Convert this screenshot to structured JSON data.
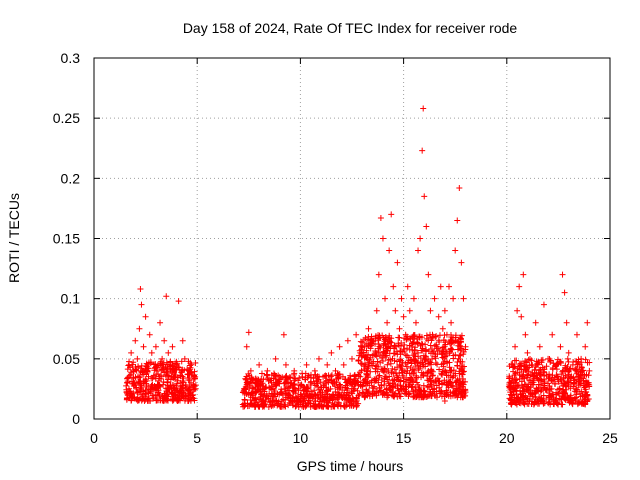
{
  "chart_data": {
    "type": "scatter",
    "title": "Day 158 of 2024, Rate Of TEC Index for receiver rode",
    "xlabel": "GPS time / hours",
    "ylabel": "ROTI / TECUs",
    "xlim": [
      0,
      25
    ],
    "ylim": [
      0,
      0.3
    ],
    "xticks": [
      0,
      5,
      10,
      15,
      20,
      25
    ],
    "xtick_labels": [
      "0",
      "5",
      "10",
      "15",
      "20",
      "25"
    ],
    "yticks": [
      0,
      0.05,
      0.1,
      0.15,
      0.2,
      0.25,
      0.3
    ],
    "ytick_labels": [
      "0",
      "0.05",
      "0.1",
      "0.15",
      "0.2",
      "0.25",
      "0.3"
    ],
    "grid": true,
    "marker": "plus",
    "color": "#ff0000",
    "series": [
      {
        "name": "ROTI",
        "points": [
          [
            1.6,
            0.03
          ],
          [
            1.7,
            0.045
          ],
          [
            1.8,
            0.055
          ],
          [
            1.9,
            0.04
          ],
          [
            2.0,
            0.065
          ],
          [
            2.1,
            0.05
          ],
          [
            2.2,
            0.075
          ],
          [
            2.25,
            0.108
          ],
          [
            2.3,
            0.095
          ],
          [
            2.4,
            0.06
          ],
          [
            2.5,
            0.085
          ],
          [
            2.6,
            0.045
          ],
          [
            2.7,
            0.07
          ],
          [
            2.8,
            0.055
          ],
          [
            2.9,
            0.035
          ],
          [
            3.0,
            0.06
          ],
          [
            3.1,
            0.045
          ],
          [
            3.2,
            0.08
          ],
          [
            3.3,
            0.05
          ],
          [
            3.4,
            0.065
          ],
          [
            3.5,
            0.102
          ],
          [
            3.6,
            0.055
          ],
          [
            3.7,
            0.04
          ],
          [
            3.8,
            0.06
          ],
          [
            3.9,
            0.035
          ],
          [
            4.0,
            0.045
          ],
          [
            4.1,
            0.098
          ],
          [
            4.2,
            0.03
          ],
          [
            4.3,
            0.065
          ],
          [
            4.4,
            0.05
          ],
          [
            4.5,
            0.025
          ],
          [
            4.6,
            0.04
          ],
          [
            4.7,
            0.03
          ],
          [
            4.8,
            0.02
          ],
          [
            4.9,
            0.035
          ],
          [
            1.65,
            0.02
          ],
          [
            2.05,
            0.025
          ],
          [
            2.45,
            0.015
          ],
          [
            3.05,
            0.02
          ],
          [
            3.55,
            0.025
          ],
          [
            4.05,
            0.018
          ],
          [
            4.55,
            0.015
          ],
          [
            7.4,
            0.06
          ],
          [
            7.5,
            0.072
          ],
          [
            7.6,
            0.04
          ],
          [
            7.8,
            0.03
          ],
          [
            8.0,
            0.045
          ],
          [
            8.2,
            0.025
          ],
          [
            8.4,
            0.04
          ],
          [
            8.6,
            0.03
          ],
          [
            8.8,
            0.05
          ],
          [
            9.0,
            0.035
          ],
          [
            9.2,
            0.07
          ],
          [
            9.3,
            0.045
          ],
          [
            9.5,
            0.03
          ],
          [
            9.7,
            0.04
          ],
          [
            9.9,
            0.025
          ],
          [
            10.1,
            0.035
          ],
          [
            10.3,
            0.045
          ],
          [
            10.5,
            0.03
          ],
          [
            10.7,
            0.04
          ],
          [
            10.9,
            0.05
          ],
          [
            11.1,
            0.035
          ],
          [
            11.3,
            0.045
          ],
          [
            11.5,
            0.055
          ],
          [
            11.7,
            0.04
          ],
          [
            11.9,
            0.06
          ],
          [
            12.1,
            0.045
          ],
          [
            12.3,
            0.065
          ],
          [
            12.5,
            0.05
          ],
          [
            12.7,
            0.07
          ],
          [
            12.9,
            0.055
          ],
          [
            13.1,
            0.06
          ],
          [
            13.3,
            0.075
          ],
          [
            13.5,
            0.065
          ],
          [
            13.7,
            0.09
          ],
          [
            13.8,
            0.12
          ],
          [
            13.9,
            0.167
          ],
          [
            14.0,
            0.15
          ],
          [
            14.1,
            0.1
          ],
          [
            14.2,
            0.08
          ],
          [
            14.3,
            0.14
          ],
          [
            14.4,
            0.17
          ],
          [
            14.5,
            0.11
          ],
          [
            14.6,
            0.09
          ],
          [
            14.7,
            0.13
          ],
          [
            14.8,
            0.075
          ],
          [
            14.9,
            0.1
          ],
          [
            15.0,
            0.085
          ],
          [
            15.1,
            0.07
          ],
          [
            15.2,
            0.11
          ],
          [
            15.3,
            0.09
          ],
          [
            15.4,
            0.06
          ],
          [
            15.5,
            0.1
          ],
          [
            15.6,
            0.08
          ],
          [
            15.7,
            0.14
          ],
          [
            15.8,
            0.15
          ],
          [
            15.9,
            0.223
          ],
          [
            15.95,
            0.258
          ],
          [
            16.0,
            0.185
          ],
          [
            16.1,
            0.16
          ],
          [
            16.2,
            0.12
          ],
          [
            16.3,
            0.09
          ],
          [
            16.4,
            0.07
          ],
          [
            16.5,
            0.1
          ],
          [
            16.6,
            0.06
          ],
          [
            16.7,
            0.085
          ],
          [
            16.8,
            0.11
          ],
          [
            16.9,
            0.075
          ],
          [
            17.0,
            0.09
          ],
          [
            17.1,
            0.07
          ],
          [
            17.2,
            0.11
          ],
          [
            17.3,
            0.08
          ],
          [
            17.4,
            0.1
          ],
          [
            17.5,
            0.14
          ],
          [
            17.6,
            0.165
          ],
          [
            17.7,
            0.192
          ],
          [
            17.8,
            0.13
          ],
          [
            17.9,
            0.1
          ],
          [
            18.0,
            0.06
          ],
          [
            7.5,
            0.02
          ],
          [
            8.1,
            0.015
          ],
          [
            9.1,
            0.015
          ],
          [
            10.0,
            0.012
          ],
          [
            11.0,
            0.018
          ],
          [
            12.0,
            0.02
          ],
          [
            13.0,
            0.022
          ],
          [
            14.0,
            0.02
          ],
          [
            15.0,
            0.025
          ],
          [
            16.0,
            0.02
          ],
          [
            17.0,
            0.015
          ],
          [
            17.5,
            0.02
          ],
          [
            20.2,
            0.03
          ],
          [
            20.4,
            0.06
          ],
          [
            20.5,
            0.09
          ],
          [
            20.6,
            0.11
          ],
          [
            20.7,
            0.085
          ],
          [
            20.8,
            0.12
          ],
          [
            20.9,
            0.07
          ],
          [
            21.0,
            0.055
          ],
          [
            21.2,
            0.045
          ],
          [
            21.4,
            0.08
          ],
          [
            21.6,
            0.06
          ],
          [
            21.8,
            0.095
          ],
          [
            22.0,
            0.05
          ],
          [
            22.2,
            0.07
          ],
          [
            22.4,
            0.045
          ],
          [
            22.6,
            0.06
          ],
          [
            22.7,
            0.12
          ],
          [
            22.8,
            0.105
          ],
          [
            22.9,
            0.08
          ],
          [
            23.0,
            0.055
          ],
          [
            23.2,
            0.045
          ],
          [
            23.4,
            0.07
          ],
          [
            23.6,
            0.05
          ],
          [
            23.8,
            0.06
          ],
          [
            23.9,
            0.08
          ],
          [
            24.0,
            0.04
          ],
          [
            20.3,
            0.02
          ],
          [
            21.1,
            0.015
          ],
          [
            22.1,
            0.012
          ],
          [
            23.1,
            0.018
          ],
          [
            23.9,
            0.02
          ]
        ],
        "bands": [
          {
            "x": [
              1.55,
              4.95
            ],
            "y": [
              0.015,
              0.048
            ],
            "density": 420
          },
          {
            "x": [
              7.2,
              12.8
            ],
            "y": [
              0.01,
              0.038
            ],
            "density": 620
          },
          {
            "x": [
              12.8,
              18.0
            ],
            "y": [
              0.018,
              0.07
            ],
            "density": 760
          },
          {
            "x": [
              20.1,
              24.0
            ],
            "y": [
              0.012,
              0.05
            ],
            "density": 520
          }
        ]
      }
    ]
  }
}
